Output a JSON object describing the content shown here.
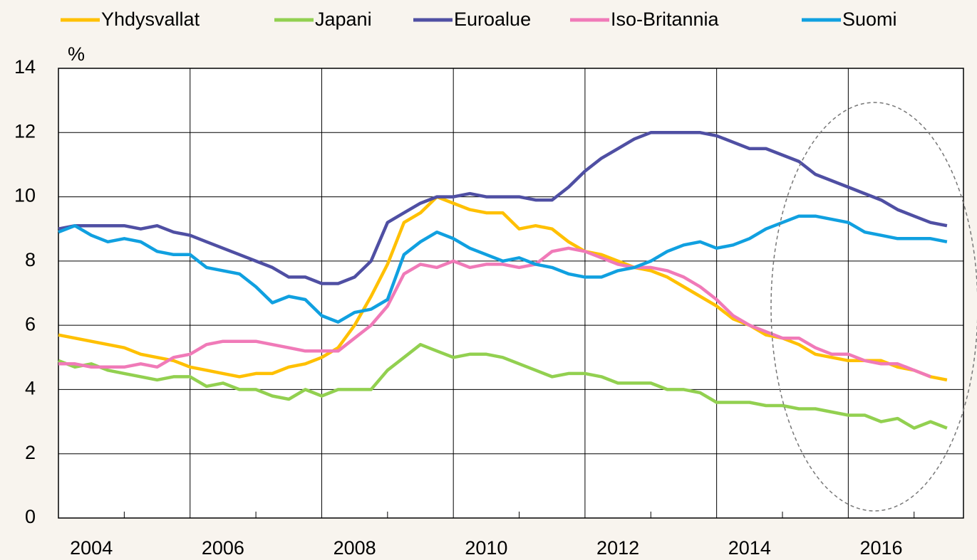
{
  "chart_data": {
    "type": "line",
    "y_axis_label": "%",
    "x": [
      2004,
      2004.25,
      2004.5,
      2004.75,
      2005,
      2005.25,
      2005.5,
      2005.75,
      2006,
      2006.25,
      2006.5,
      2006.75,
      2007,
      2007.25,
      2007.5,
      2007.75,
      2008,
      2008.25,
      2008.5,
      2008.75,
      2009,
      2009.25,
      2009.5,
      2009.75,
      2010,
      2010.25,
      2010.5,
      2010.75,
      2011,
      2011.25,
      2011.5,
      2011.75,
      2012,
      2012.25,
      2012.5,
      2012.75,
      2013,
      2013.25,
      2013.5,
      2013.75,
      2014,
      2014.25,
      2014.5,
      2014.75,
      2015,
      2015.25,
      2015.5,
      2015.75,
      2016,
      2016.25,
      2016.5,
      2016.75,
      2017,
      2017.25,
      2017.5
    ],
    "series": [
      {
        "name": "Yhdysvallat",
        "color": "#ffc000",
        "values": [
          5.7,
          5.6,
          5.5,
          5.4,
          5.3,
          5.1,
          5.0,
          4.9,
          4.7,
          4.6,
          4.5,
          4.4,
          4.5,
          4.5,
          4.7,
          4.8,
          5.0,
          5.3,
          6.0,
          6.9,
          7.9,
          9.2,
          9.5,
          10.0,
          9.8,
          9.6,
          9.5,
          9.5,
          9.0,
          9.1,
          9.0,
          8.6,
          8.3,
          8.2,
          8.0,
          7.8,
          7.7,
          7.5,
          7.2,
          6.9,
          6.6,
          6.2,
          6.0,
          5.7,
          5.6,
          5.4,
          5.1,
          5.0,
          4.9,
          4.9,
          4.9,
          4.7,
          4.6,
          4.4,
          4.3
        ]
      },
      {
        "name": "Japani",
        "color": "#92d050",
        "values": [
          4.9,
          4.7,
          4.8,
          4.6,
          4.5,
          4.4,
          4.3,
          4.4,
          4.4,
          4.1,
          4.2,
          4.0,
          4.0,
          3.8,
          3.7,
          4.0,
          3.8,
          4.0,
          4.0,
          4.0,
          4.6,
          5.0,
          5.4,
          5.2,
          5.0,
          5.1,
          5.1,
          5.0,
          4.8,
          4.6,
          4.4,
          4.5,
          4.5,
          4.4,
          4.2,
          4.2,
          4.2,
          4.0,
          4.0,
          3.9,
          3.6,
          3.6,
          3.6,
          3.5,
          3.5,
          3.4,
          3.4,
          3.3,
          3.2,
          3.2,
          3.0,
          3.1,
          2.8,
          3.0,
          2.8
        ]
      },
      {
        "name": "Euroalue",
        "color": "#4f4fa3",
        "values": [
          9.0,
          9.1,
          9.1,
          9.1,
          9.1,
          9.0,
          9.1,
          8.9,
          8.8,
          8.6,
          8.4,
          8.2,
          8.0,
          7.8,
          7.5,
          7.5,
          7.3,
          7.3,
          7.5,
          8.0,
          9.2,
          9.5,
          9.8,
          10.0,
          10.0,
          10.1,
          10.0,
          10.0,
          10.0,
          9.9,
          9.9,
          10.3,
          10.8,
          11.2,
          11.5,
          11.8,
          12.0,
          12.0,
          12.0,
          12.0,
          11.9,
          11.7,
          11.5,
          11.5,
          11.3,
          11.1,
          10.7,
          10.5,
          10.3,
          10.1,
          9.9,
          9.6,
          9.4,
          9.2,
          9.1
        ]
      },
      {
        "name": "Iso-Britannia",
        "color": "#f07ab8",
        "values": [
          4.8,
          4.8,
          4.7,
          4.7,
          4.7,
          4.8,
          4.7,
          5.0,
          5.1,
          5.4,
          5.5,
          5.5,
          5.5,
          5.4,
          5.3,
          5.2,
          5.2,
          5.2,
          5.6,
          6.0,
          6.6,
          7.6,
          7.9,
          7.8,
          8.0,
          7.8,
          7.9,
          7.9,
          7.8,
          7.9,
          8.3,
          8.4,
          8.3,
          8.1,
          7.9,
          7.8,
          7.8,
          7.7,
          7.5,
          7.2,
          6.8,
          6.3,
          6.0,
          5.8,
          5.6,
          5.6,
          5.3,
          5.1,
          5.1,
          4.9,
          4.8,
          4.8,
          4.6,
          4.4,
          null
        ]
      },
      {
        "name": "Suomi",
        "color": "#10a0e0",
        "values": [
          8.9,
          9.1,
          8.8,
          8.6,
          8.7,
          8.6,
          8.3,
          8.2,
          8.2,
          7.8,
          7.7,
          7.6,
          7.2,
          6.7,
          6.9,
          6.8,
          6.3,
          6.1,
          6.4,
          6.5,
          6.8,
          8.2,
          8.6,
          8.9,
          8.7,
          8.4,
          8.2,
          8.0,
          8.1,
          7.9,
          7.8,
          7.6,
          7.5,
          7.5,
          7.7,
          7.8,
          8.0,
          8.3,
          8.5,
          8.6,
          8.4,
          8.5,
          8.7,
          9.0,
          9.2,
          9.4,
          9.4,
          9.3,
          9.2,
          8.9,
          8.8,
          8.7,
          8.7,
          8.7,
          8.6
        ]
      }
    ],
    "xlim": [
      2004,
      2017.75
    ],
    "xticks": [
      {
        "value": 2004.5,
        "label": "2004"
      },
      {
        "value": 2006.5,
        "label": "2006"
      },
      {
        "value": 2008.5,
        "label": "2008"
      },
      {
        "value": 2010.5,
        "label": "2010"
      },
      {
        "value": 2012.5,
        "label": "2012"
      },
      {
        "value": 2014.5,
        "label": "2014"
      },
      {
        "value": 2016.5,
        "label": "2016"
      }
    ],
    "xgrid": [
      2006,
      2008,
      2010,
      2012,
      2014,
      2016
    ],
    "xminor": [
      2005,
      2007,
      2009,
      2011,
      2013,
      2015,
      2017
    ],
    "ylim": [
      0,
      14
    ],
    "yticks": [
      0,
      2,
      4,
      6,
      8,
      10,
      12,
      14
    ],
    "grid": true
  }
}
